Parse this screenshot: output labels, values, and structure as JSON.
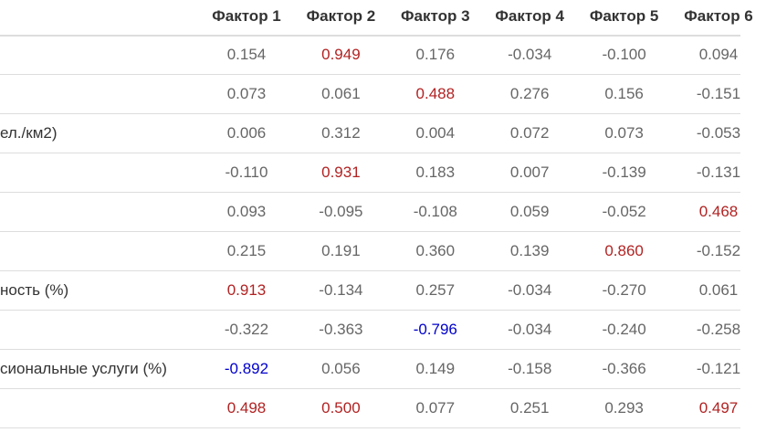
{
  "table": {
    "columns": [
      "Фактор 1",
      "Фактор 2",
      "Фактор 3",
      "Фактор 4",
      "Фактор 5",
      "Фактор 6"
    ],
    "text_color": "#666666",
    "rows": [
      {
        "cells": [
          "0.154",
          {
            "text": "0.949",
            "color": "#b22222"
          },
          "0.176",
          "-0.034",
          "-0.100",
          "0.094"
        ]
      },
      {
        "cells": [
          "0.073",
          "0.061",
          {
            "text": "0.488",
            "color": "#b22222"
          },
          "0.276",
          "0.156",
          "-0.151"
        ]
      },
      {
        "label": "ел./км2)",
        "cells": [
          "0.006",
          "0.312",
          "0.004",
          "0.072",
          "0.073",
          "-0.053"
        ]
      },
      {
        "cells": [
          "-0.110",
          {
            "text": "0.931",
            "color": "#b22222"
          },
          "0.183",
          "0.007",
          "-0.139",
          "-0.131"
        ]
      },
      {
        "cells": [
          "0.093",
          "-0.095",
          "-0.108",
          "0.059",
          "-0.052",
          {
            "text": "0.468",
            "color": "#b22222"
          }
        ]
      },
      {
        "cells": [
          "0.215",
          "0.191",
          "0.360",
          "0.139",
          {
            "text": "0.860",
            "color": "#b22222"
          },
          "-0.152"
        ]
      },
      {
        "label": "ность (%)",
        "cells": [
          {
            "text": "0.913",
            "color": "#b22222"
          },
          "-0.134",
          "0.257",
          "-0.034",
          "-0.270",
          "0.061"
        ]
      },
      {
        "cells": [
          "-0.322",
          "-0.363",
          {
            "text": "-0.796",
            "color": "#0000cc"
          },
          "-0.034",
          "-0.240",
          "-0.258"
        ]
      },
      {
        "label": "сиональные услуги (%)",
        "cells": [
          {
            "text": "-0.892",
            "color": "#0000cc"
          },
          "0.056",
          "0.149",
          "-0.158",
          "-0.366",
          "-0.121"
        ]
      },
      {
        "cells": [
          {
            "text": "0.498",
            "color": "#b22222"
          },
          {
            "text": "0.500",
            "color": "#b22222"
          },
          "0.077",
          "0.251",
          "0.293",
          {
            "text": "0.497",
            "color": "#b22222"
          }
        ]
      }
    ]
  }
}
